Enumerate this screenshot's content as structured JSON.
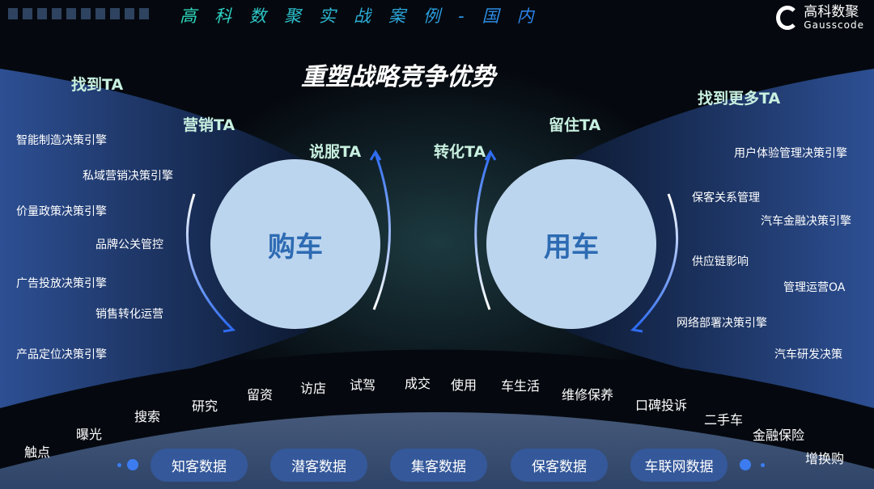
{
  "header": {
    "title": "高科数聚实战案例-国内",
    "logo_cn": "高科数聚",
    "logo_en": "Gausscode"
  },
  "main_title": "重塑战略竞争优势",
  "stages": {
    "find_ta": "找到TA",
    "market_ta": "营销TA",
    "persuade_ta": "说服TA",
    "convert_ta": "转化TA",
    "retain_ta": "留住TA",
    "find_more_ta": "找到更多TA"
  },
  "circles": {
    "buy": "购车",
    "use": "用车"
  },
  "left_items": [
    "智能制造决策引擎",
    "私域营销决策引擎",
    "价量政策决策引擎",
    "品牌公关管控",
    "广告投放决策引擎",
    "销售转化运营",
    "产品定位决策引擎"
  ],
  "right_items": [
    "用户体验管理决策引擎",
    "保客关系管理",
    "汽车金融决策引擎",
    "供应链影响",
    "管理运营OA",
    "网络部署决策引擎",
    "汽车研发决策"
  ],
  "journey": [
    "触点",
    "曝光",
    "搜索",
    "研究",
    "留资",
    "访店",
    "试驾",
    "成交",
    "使用",
    "车生活",
    "维修保养",
    "口碑投诉",
    "二手车",
    "金融保险",
    "增换购"
  ],
  "data_pills": [
    "知客数据",
    "潜客数据",
    "集客数据",
    "保客数据",
    "车联网数据"
  ]
}
